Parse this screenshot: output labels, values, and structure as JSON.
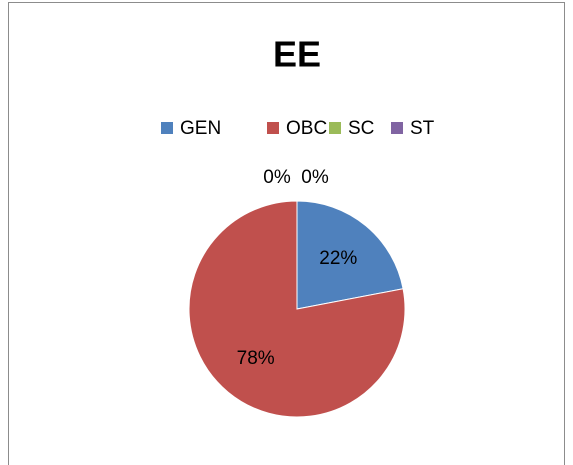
{
  "chart_data": {
    "type": "pie",
    "title": "EE",
    "categories": [
      "GEN",
      "OBC",
      "SC",
      "ST"
    ],
    "values": [
      22,
      78,
      0,
      0
    ],
    "value_labels": [
      "22%",
      "78%",
      "0%",
      "0%"
    ],
    "colors": [
      "#4f81bd",
      "#c0504d",
      "#9bbb59",
      "#8064a2"
    ],
    "legend": "top"
  }
}
